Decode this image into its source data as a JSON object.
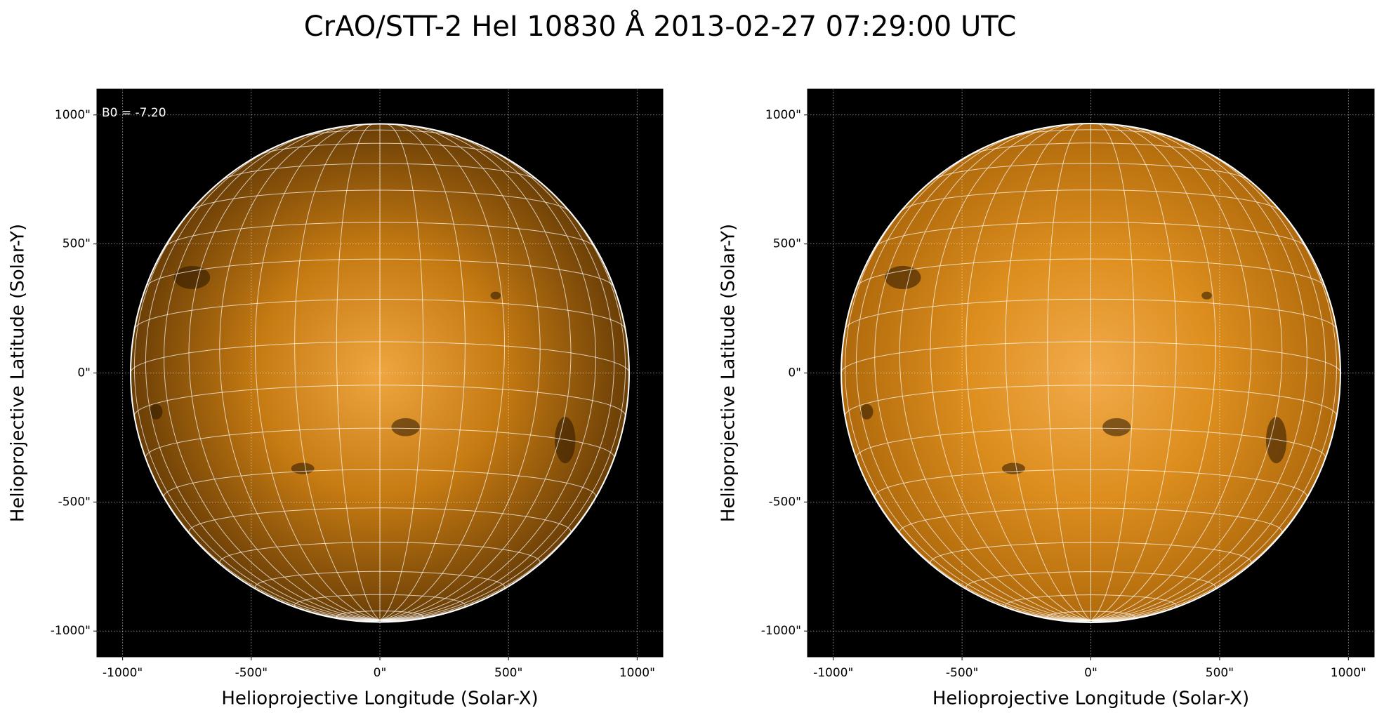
{
  "title": "CrAO/STT-2 HeI 10830 Å 2013-02-27 07:29:00 UTC",
  "chart_data": [
    {
      "type": "image",
      "xlabel": "Helioprojective Longitude (Solar-X)",
      "ylabel": "Helioprojective Latitude (Solar-Y)",
      "annotation": "B0 = -7.20",
      "b0": -7.2,
      "limb_radius": 969,
      "grid_spacing_deg": 10,
      "disk_colors": [
        "#f0a640",
        "#c57a12",
        "#6a3e06"
      ],
      "background": "#000000",
      "grid": true,
      "xlim": [
        -1100,
        1100
      ],
      "ylim": [
        -1100,
        1100
      ],
      "xticks": [
        {
          "value": -1000,
          "label": "-1000\""
        },
        {
          "value": -500,
          "label": "-500\""
        },
        {
          "value": 0,
          "label": "0\""
        },
        {
          "value": 500,
          "label": "500\""
        },
        {
          "value": 1000,
          "label": "1000\""
        }
      ],
      "yticks": [
        {
          "value": -1000,
          "label": "-1000\""
        },
        {
          "value": -500,
          "label": "-500\""
        },
        {
          "value": 0,
          "label": "0\""
        },
        {
          "value": 500,
          "label": "500\""
        },
        {
          "value": 1000,
          "label": "1000\""
        }
      ]
    },
    {
      "type": "image",
      "xlabel": "Helioprojective Longitude (Solar-X)",
      "ylabel": "Helioprojective Latitude (Solar-Y)",
      "b0": -7.2,
      "limb_radius": 969,
      "grid_spacing_deg": 10,
      "disk_colors": [
        "#f2ab4c",
        "#dd8e1e",
        "#b06a0c"
      ],
      "background": "#000000",
      "grid": true,
      "xlim": [
        -1100,
        1100
      ],
      "ylim": [
        -1100,
        1100
      ],
      "xticks": [
        {
          "value": -1000,
          "label": "-1000\""
        },
        {
          "value": -500,
          "label": "-500\""
        },
        {
          "value": 0,
          "label": "0\""
        },
        {
          "value": 500,
          "label": "500\""
        },
        {
          "value": 1000,
          "label": "1000\""
        }
      ],
      "yticks": [
        {
          "value": -1000,
          "label": "-1000\""
        },
        {
          "value": -500,
          "label": "-500\""
        },
        {
          "value": 0,
          "label": "0\""
        },
        {
          "value": 500,
          "label": "500\""
        },
        {
          "value": 1000,
          "label": "1000\""
        }
      ]
    }
  ]
}
